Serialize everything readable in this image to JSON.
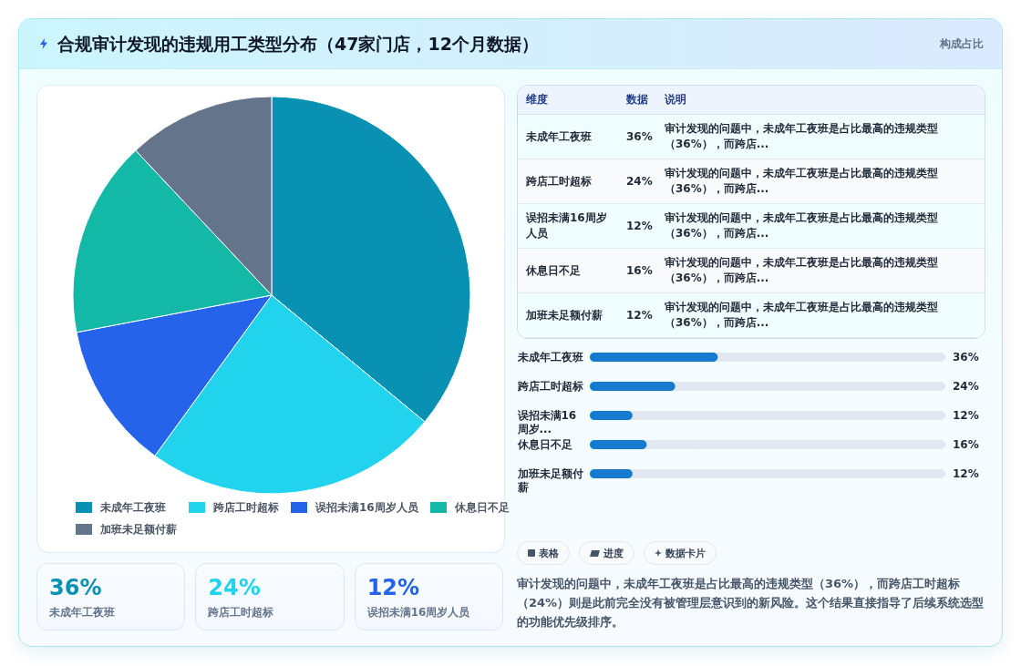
{
  "chart_data": [
    {
      "type": "pie",
      "title": "合规审计发现的违规用工类型分布（47家门店，12个月数据）",
      "categories": [
        "未成年工夜班",
        "跨店工时超标",
        "误招未满16周岁人员",
        "休息日不足",
        "加班未足额付薪"
      ],
      "values": [
        36,
        24,
        12,
        16,
        12
      ],
      "colors": [
        "#0891b2",
        "#22d3ee",
        "#2563eb",
        "#14b8a6",
        "#64748b"
      ],
      "legend": "bottom"
    },
    {
      "type": "other",
      "title": "构成占比",
      "annotations": [
        "维度",
        "数据",
        "说明",
        "未成年工夜班",
        "36%",
        "审计发现的问题中，未成年工夜班是占比最高的违规类型（36%），而跨店...",
        "跨店工时超标",
        "24%",
        "审计发现的问题中，未成年工夜班是占比最高的违规类型（36%），而跨店...",
        "误招未满16周岁人员",
        "12%",
        "审计发现的问题中，未成年工夜班是占比最高的违规类型（36%），而跨店...",
        "休息日不足",
        "16%",
        "审计发现的问题中，未成年工夜班是占比最高的违规类型（36%），而跨店...",
        "加班未足额付薪",
        "12%",
        "审计发现的问题中，未成年工夜班是占比最高的违规类型（36%），而跨店..."
      ]
    },
    {
      "type": "bar",
      "orientation": "horizontal",
      "categories": [
        "未成年工夜班",
        "跨店工时超标",
        "误招未满16周岁...",
        "休息日不足",
        "加班未足额付薪"
      ],
      "values": [
        36,
        24,
        12,
        16,
        12
      ],
      "value_labels": [
        "36%",
        "24%",
        "12%",
        "16%",
        "12%"
      ],
      "color": "#167ace",
      "xlim": [
        0,
        100
      ],
      "tick_labels": "y"
    },
    {
      "type": "other",
      "annotations": [
        "36%",
        "未成年工夜班",
        "24%",
        "跨店工时超标",
        "12%",
        "误招未满16周岁人员"
      ]
    },
    {
      "type": "other",
      "annotations": [
        "表格",
        "进度",
        "数据卡片",
        "审计发现的问题中，未成年工夜班是占比最高的违规类型（36%），而跨店工时超标（24%）则是此前完全没有被管理层意识到的新风险。这个结果直接指导了后续系统选型的功能优先级排序。"
      ]
    }
  ]
}
